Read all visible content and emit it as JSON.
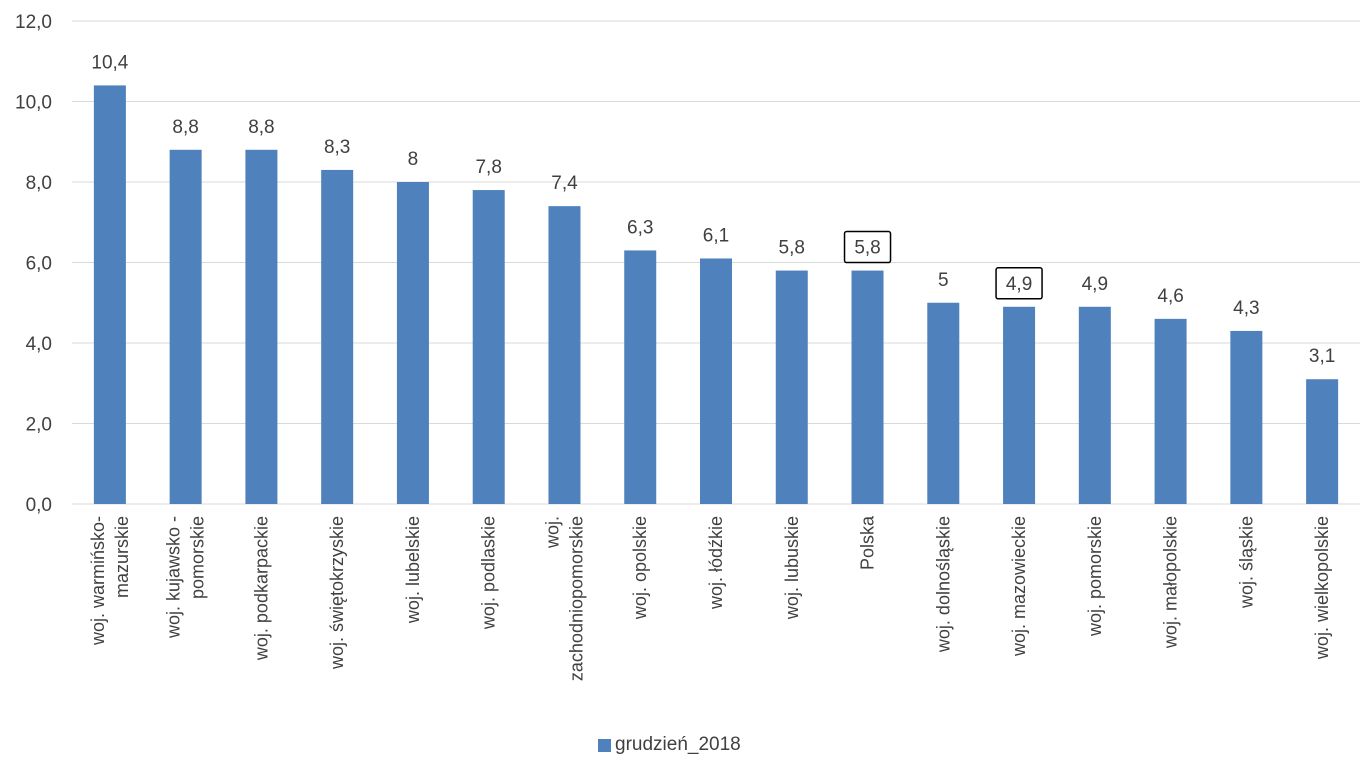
{
  "chart_data": {
    "type": "bar",
    "categories": [
      "woj. warmińsko-mazurskie",
      "woj. kujawsko - pomorskie",
      "woj. podkarpackie",
      "woj. świętokrzyskie",
      "woj. lubelskie",
      "woj. podlaskie",
      "woj. zachodniopomorskie",
      "woj. opolskie",
      "woj. łódźkie",
      "woj. lubuskie",
      "Polska",
      "woj. dolnośląskie",
      "woj. mazowieckie",
      "woj. pomorskie",
      "woj. małopolskie",
      "woj. śląskie",
      "woj. wielkopolskie"
    ],
    "category_lines": [
      [
        "woj. warmińsko-",
        "mazurskie"
      ],
      [
        "woj. kujawsko -",
        "pomorskie"
      ],
      [
        "woj. podkarpackie"
      ],
      [
        "woj. świętokrzyskie"
      ],
      [
        "woj. lubelskie"
      ],
      [
        "woj. podlaskie"
      ],
      [
        "woj.",
        "zachodniopomorskie"
      ],
      [
        "woj. opolskie"
      ],
      [
        "woj. łódźkie"
      ],
      [
        "woj. lubuskie"
      ],
      [
        "Polska"
      ],
      [
        "woj. dolnośląskie"
      ],
      [
        "woj. mazowieckie"
      ],
      [
        "woj. pomorskie"
      ],
      [
        "woj. małopolskie"
      ],
      [
        "woj. śląskie"
      ],
      [
        "woj. wielkopolskie"
      ]
    ],
    "series": [
      {
        "name": "grudzień_2018",
        "values": [
          10.4,
          8.8,
          8.8,
          8.3,
          8,
          7.8,
          7.4,
          6.3,
          6.1,
          5.8,
          5.8,
          5,
          4.9,
          4.9,
          4.6,
          4.3,
          3.1
        ],
        "labels": [
          "10,4",
          "8,8",
          "8,8",
          "8,3",
          "8",
          "7,8",
          "7,4",
          "6,3",
          "6,1",
          "5,8",
          "5,8",
          "5",
          "4,9",
          "4,9",
          "4,6",
          "4,3",
          "3,1"
        ]
      }
    ],
    "boxed_label_indices": [
      10,
      12
    ],
    "ylim": [
      0,
      12
    ],
    "yticks": [
      "0,0",
      "2,0",
      "4,0",
      "6,0",
      "8,0",
      "10,0",
      "12,0"
    ],
    "grid": true,
    "legend_position": "bottom",
    "colors": {
      "bar": "#4F81BD",
      "grid": "#D9D9D9",
      "text": "#404040"
    }
  }
}
